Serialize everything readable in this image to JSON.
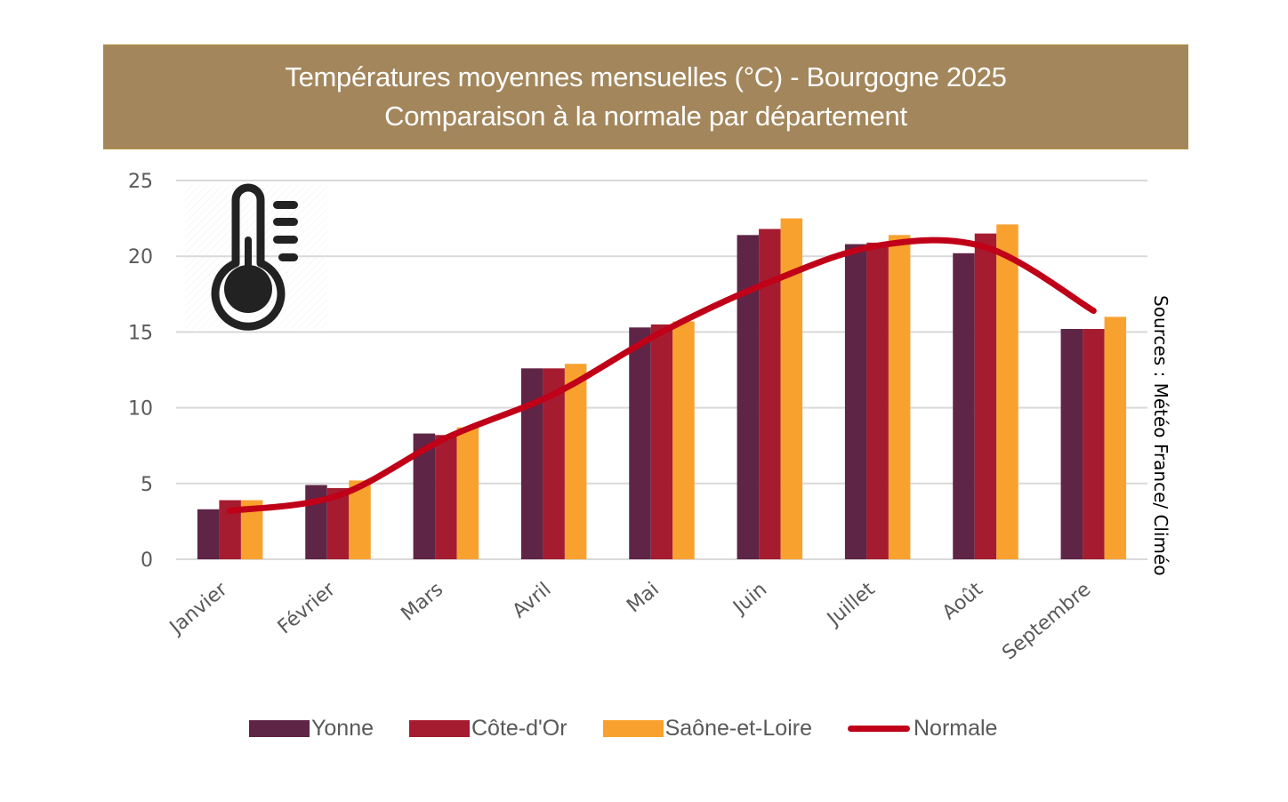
{
  "header": {
    "title_line1": "Températures moyennes mensuelles (°C) - Bourgogne 2025",
    "title_line2": "Comparaison à la normale par département"
  },
  "source_note": "Sources : Météo France/ Climéo",
  "icon": "thermometer-icon",
  "chart_data": {
    "type": "bar",
    "title": "Températures moyennes mensuelles (°C) - Bourgogne 2025",
    "subtitle": "Comparaison à la normale par département",
    "xlabel": "",
    "ylabel": "",
    "ylim": [
      0,
      25
    ],
    "yticks": [
      "0",
      "5",
      "10",
      "15",
      "20",
      "25"
    ],
    "grid": true,
    "legend_position": "bottom",
    "categories": [
      "Janvier",
      "Février",
      "Mars",
      "Avril",
      "Mai",
      "Juin",
      "Juillet",
      "Août",
      "Septembre"
    ],
    "series": [
      {
        "name": "Yonne",
        "type": "bar",
        "color": "#5e2546",
        "values": [
          3.3,
          4.9,
          8.3,
          12.6,
          15.3,
          21.4,
          20.8,
          20.2,
          15.2
        ]
      },
      {
        "name": "Côte-d'Or",
        "type": "bar",
        "color": "#a51c30",
        "values": [
          3.9,
          4.7,
          8.2,
          12.6,
          15.5,
          21.8,
          20.9,
          21.5,
          15.2
        ]
      },
      {
        "name": "Saône-et-Loire",
        "type": "bar",
        "color": "#f9a12e",
        "values": [
          3.9,
          5.2,
          8.7,
          12.9,
          15.7,
          22.5,
          21.4,
          22.1,
          16.0
        ]
      },
      {
        "name": "Normale",
        "type": "line",
        "color": "#c00018",
        "values": [
          3.2,
          4.2,
          8.0,
          10.9,
          15.0,
          18.3,
          20.7,
          20.6,
          16.4
        ]
      }
    ]
  }
}
